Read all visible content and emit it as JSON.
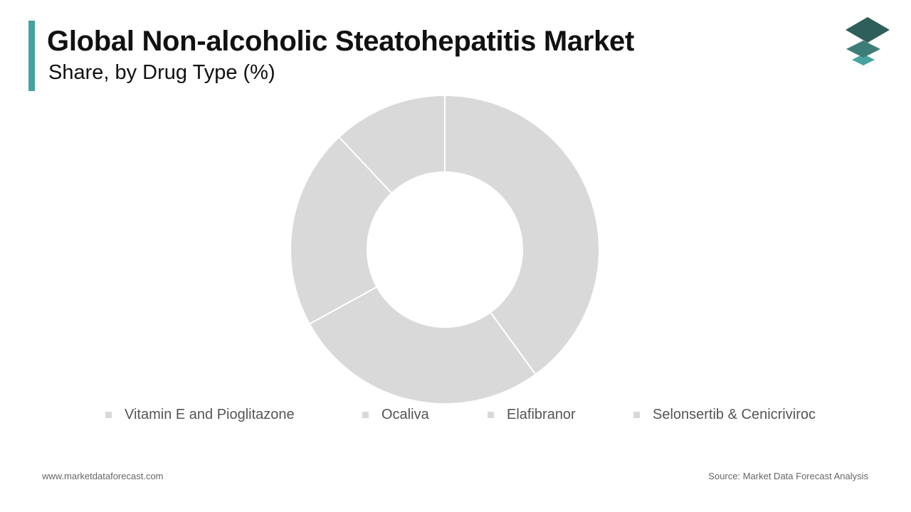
{
  "header": {
    "title": "Global Non-alcoholic Steatohepatitis Market",
    "subtitle": "Share, by Drug Type (%)"
  },
  "logo": {
    "icon": "stacked-layers-icon",
    "colors": [
      "#2f5f5a",
      "#46a3a0"
    ]
  },
  "colors": {
    "accent": "#46a3a0",
    "slice": "#d9d9d9",
    "slice_border": "#ffffff"
  },
  "chart_data": {
    "type": "pie",
    "variant": "donut",
    "categories": [
      "Vitamin E and Pioglitazone",
      "Ocaliva",
      "Elafibranor",
      "Selonsertib & Cenicriviroc"
    ],
    "values": [
      40,
      27,
      21,
      12
    ],
    "legend_position": "bottom"
  },
  "footer": {
    "website": "www.marketdataforecast.com",
    "source": "Source: Market Data Forecast Analysis"
  }
}
